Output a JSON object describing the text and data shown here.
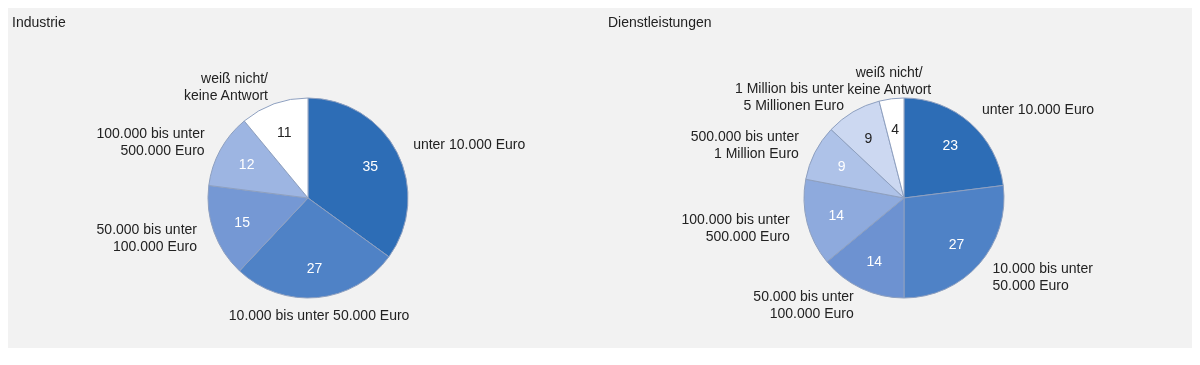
{
  "chart_data": [
    {
      "type": "pie",
      "title": "Industrie",
      "categories": [
        "unter 10.000 Euro",
        "10.000 bis unter 50.000 Euro",
        "50.000 bis unter\n100.000 Euro",
        "100.000 bis unter\n500.000 Euro",
        "weiß nicht/\nkeine Antwort"
      ],
      "values": [
        35,
        27,
        15,
        12,
        11
      ],
      "colors": [
        "#2d6db6",
        "#4f82c6",
        "#7598d4",
        "#9db5e2",
        "#ffffff"
      ],
      "data_labels": true
    },
    {
      "type": "pie",
      "title": "Dienstleistungen",
      "categories": [
        "unter 10.000 Euro",
        "10.000 bis unter\n50.000 Euro",
        "50.000 bis unter\n100.000 Euro",
        "100.000 bis unter\n500.000 Euro",
        "500.000 bis unter\n1 Million Euro",
        "1 Million bis unter\n5 Millionen Euro",
        "weiß nicht/\nkeine Antwort"
      ],
      "values": [
        23,
        27,
        14,
        14,
        9,
        9,
        4
      ],
      "colors": [
        "#2d6db6",
        "#4f82c6",
        "#6d92d1",
        "#8eaadd",
        "#aec2e8",
        "#ccd8f1",
        "#ffffff"
      ],
      "data_labels": true
    }
  ]
}
